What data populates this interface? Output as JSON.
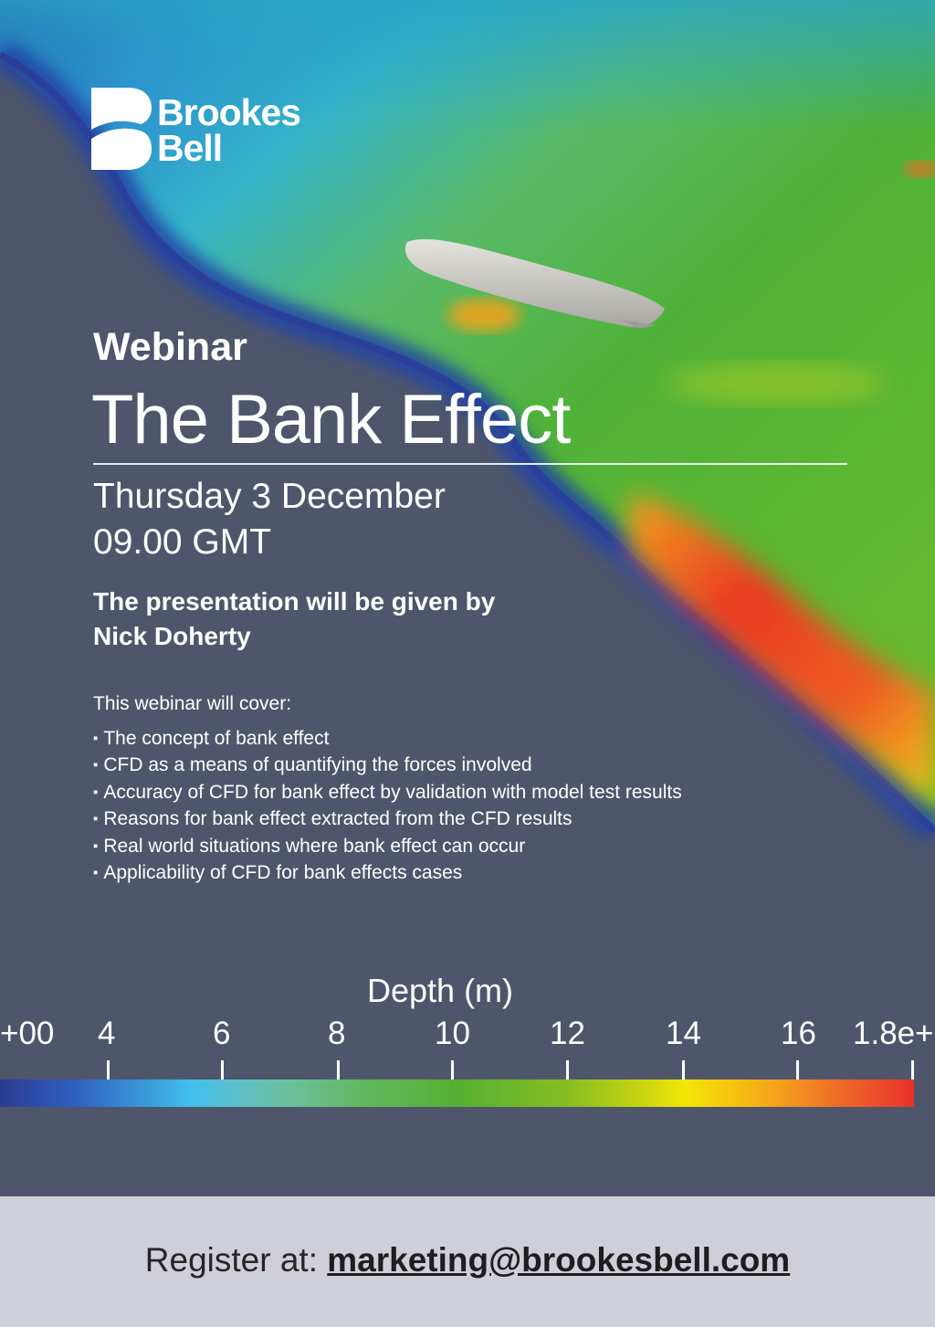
{
  "brand": {
    "name_line1": "Brookes",
    "name_line2": "Bell"
  },
  "event": {
    "kicker": "Webinar",
    "title": "The Bank Effect",
    "date": "Thursday 3 December",
    "time": "09.00 GMT"
  },
  "presenter": {
    "intro": "The presentation will be given by",
    "name": "Nick Doherty"
  },
  "topics": {
    "intro": "This webinar will cover:",
    "items": [
      "The concept of bank effect",
      "CFD as a means of quantifying the forces involved",
      "Accuracy of CFD for bank effect by validation with model test results",
      "Reasons for bank effect extracted from the CFD results",
      "Real world situations where bank effect can occur",
      "Applicability of CFD for bank effects cases"
    ]
  },
  "colorbar": {
    "title": "Depth (m)",
    "ticks": [
      "+00",
      "4",
      "6",
      "8",
      "10",
      "12",
      "14",
      "16",
      "1.8e+"
    ]
  },
  "footer": {
    "label": "Register at: ",
    "email": "marketing@brookesbell.com"
  },
  "colors": {
    "background": "#4f566b",
    "footer_bg": "#cfcfd9",
    "text_light": "#ffffff",
    "text_dark": "#262626"
  }
}
